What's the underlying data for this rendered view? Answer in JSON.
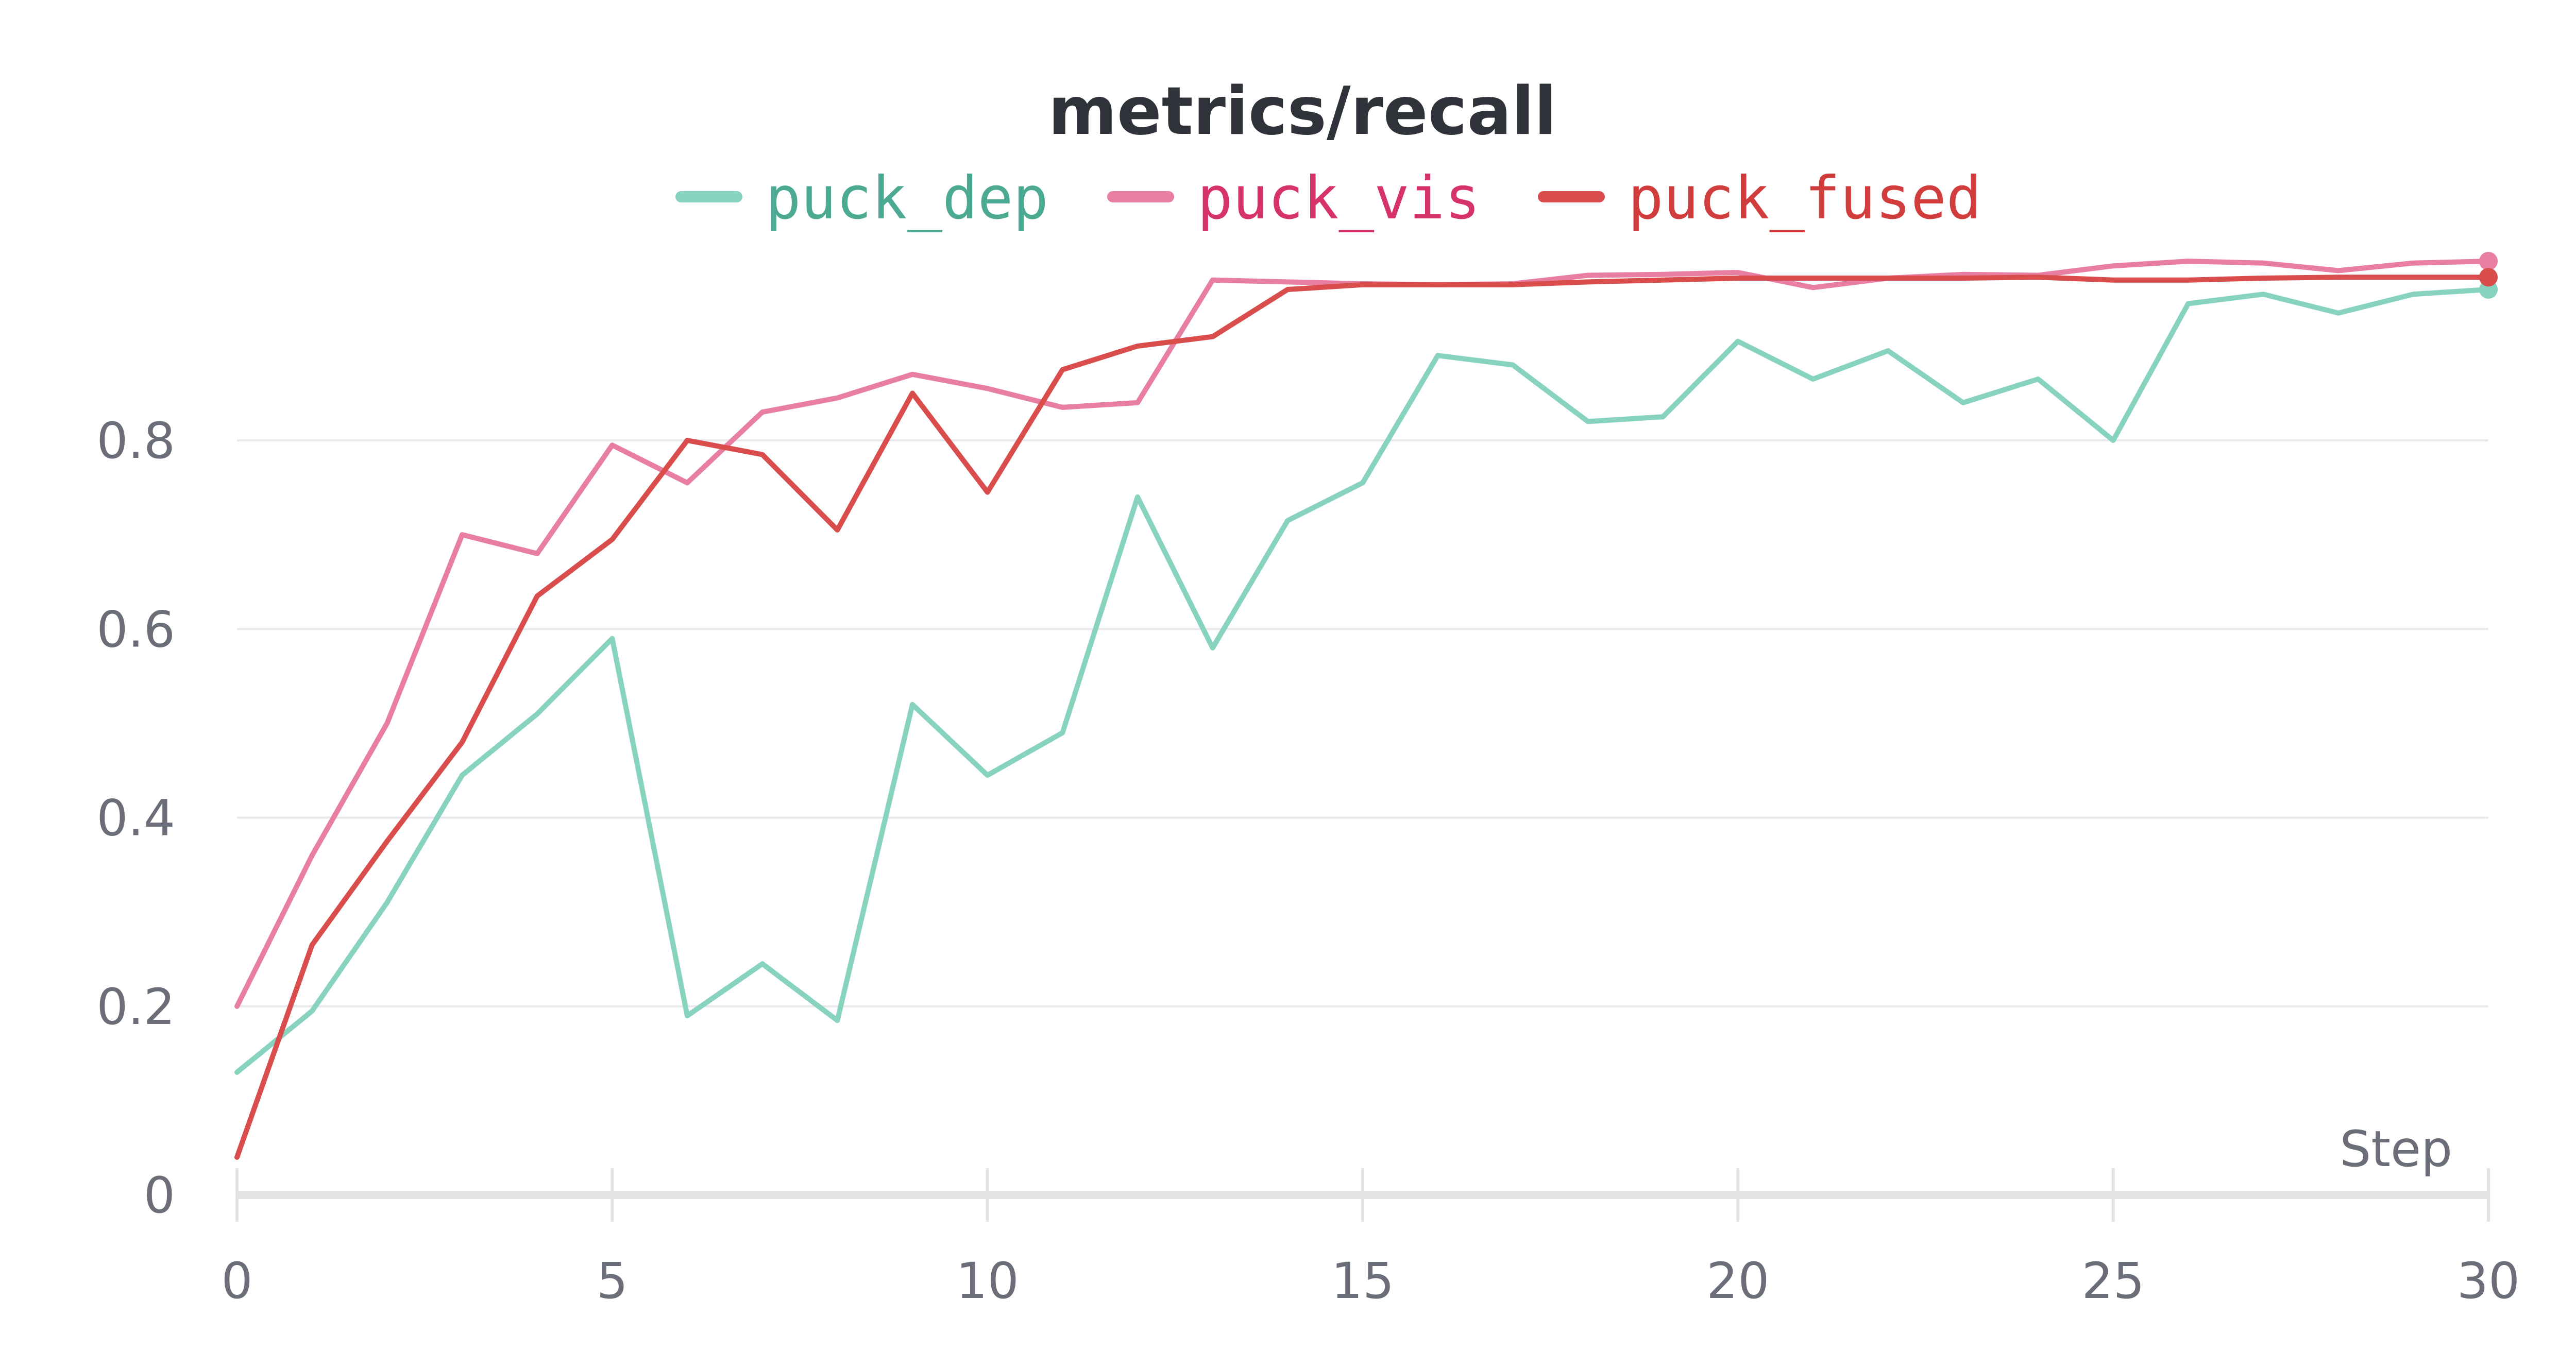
{
  "chart_data": {
    "type": "line",
    "title": "metrics/recall",
    "xlabel": "Step",
    "ylabel": "",
    "xlim": [
      0,
      30
    ],
    "ylim": [
      0,
      1.0
    ],
    "x_ticks": [
      0,
      5,
      10,
      15,
      20,
      25,
      30
    ],
    "y_ticks": [
      0,
      0.2,
      0.4,
      0.6,
      0.8
    ],
    "y_tick_labels": [
      "0",
      "0.2",
      "0.4",
      "0.6",
      "0.8"
    ],
    "grid": "horizontal",
    "legend_position": "top-center",
    "x": [
      0,
      1,
      2,
      3,
      4,
      5,
      6,
      7,
      8,
      9,
      10,
      11,
      12,
      13,
      14,
      15,
      16,
      17,
      18,
      19,
      20,
      21,
      22,
      23,
      24,
      25,
      26,
      27,
      28,
      29,
      30
    ],
    "series": [
      {
        "name": "puck_dep",
        "color": "#87d3c0",
        "text_color": "#4caa93",
        "values": [
          0.13,
          0.195,
          0.31,
          0.445,
          0.51,
          0.59,
          0.19,
          0.245,
          0.185,
          0.52,
          0.445,
          0.49,
          0.74,
          0.58,
          0.715,
          0.755,
          0.89,
          0.88,
          0.82,
          0.825,
          0.905,
          0.865,
          0.895,
          0.84,
          0.865,
          0.8,
          0.945,
          0.955,
          0.935,
          0.955,
          0.96
        ]
      },
      {
        "name": "puck_vis",
        "color": "#e87fa3",
        "text_color": "#d6336c",
        "values": [
          0.2,
          0.36,
          0.5,
          0.7,
          0.68,
          0.795,
          0.755,
          0.83,
          0.845,
          0.87,
          0.855,
          0.835,
          0.84,
          0.97,
          0.968,
          0.966,
          0.965,
          0.966,
          0.975,
          0.976,
          0.978,
          0.962,
          0.972,
          0.976,
          0.975,
          0.985,
          0.99,
          0.988,
          0.98,
          0.988,
          0.99
        ]
      },
      {
        "name": "puck_fused",
        "color": "#d94d4d",
        "text_color": "#d13d3d",
        "values": [
          0.04,
          0.265,
          0.375,
          0.48,
          0.635,
          0.695,
          0.8,
          0.785,
          0.705,
          0.85,
          0.745,
          0.875,
          0.9,
          0.91,
          0.96,
          0.965,
          0.965,
          0.965,
          0.968,
          0.97,
          0.972,
          0.972,
          0.972,
          0.972,
          0.973,
          0.97,
          0.97,
          0.972,
          0.973,
          0.973,
          0.973
        ]
      }
    ]
  }
}
